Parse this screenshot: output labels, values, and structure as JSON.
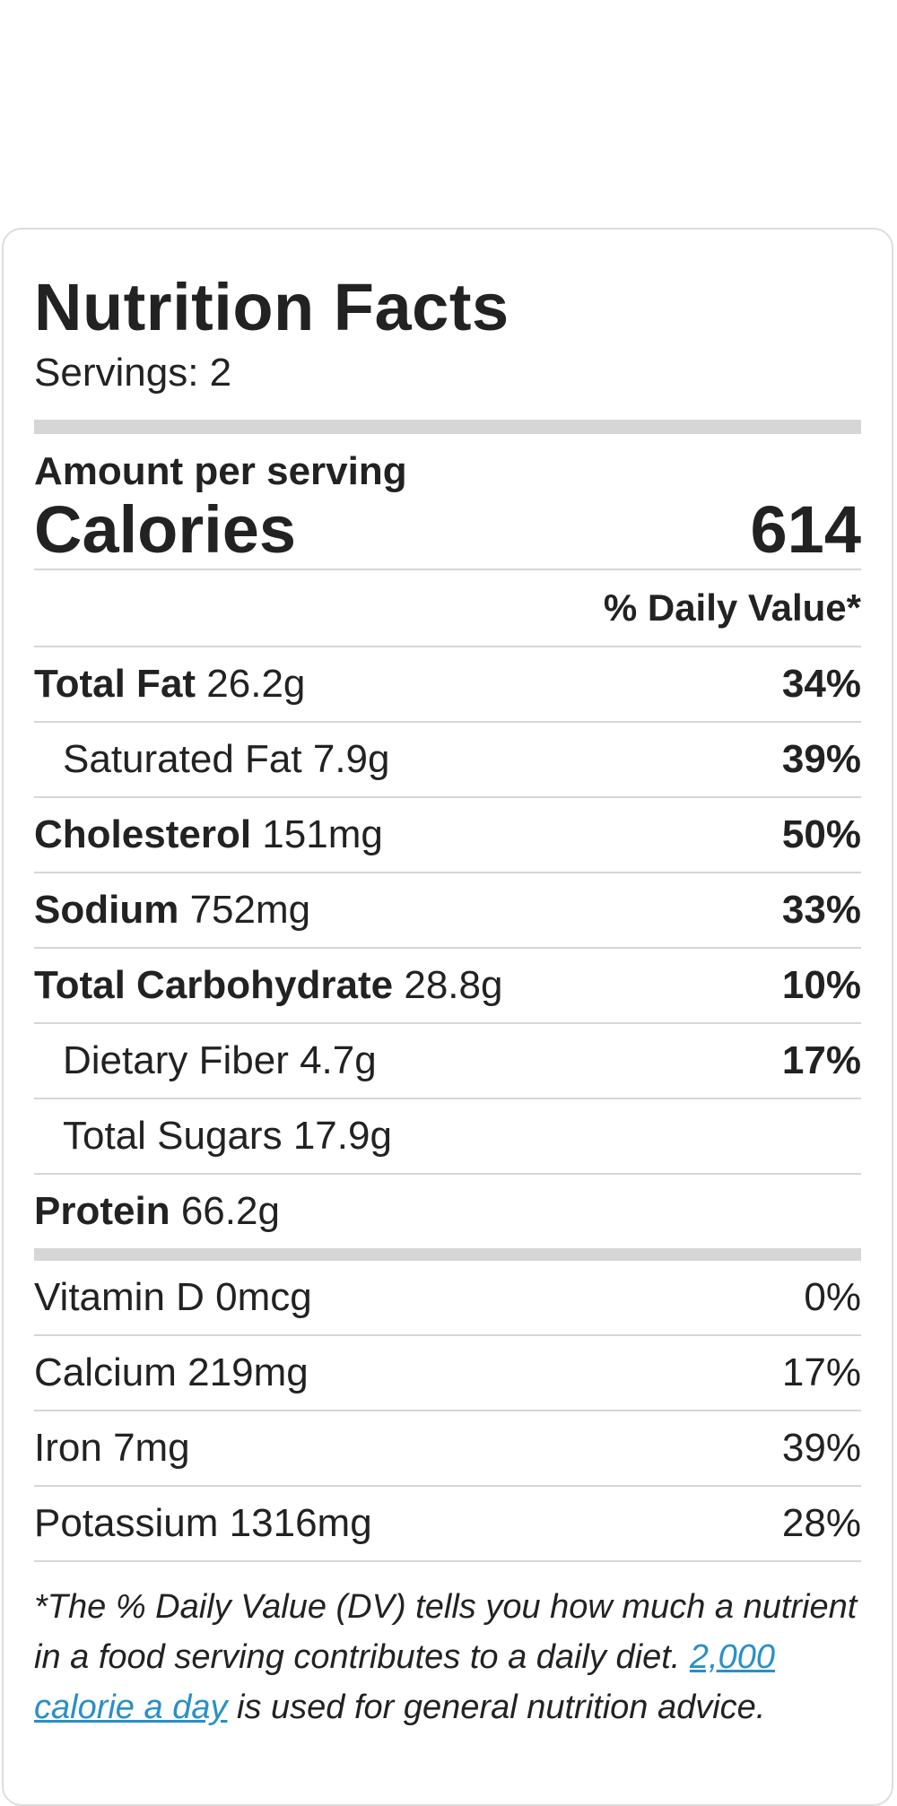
{
  "label": {
    "title": "Nutrition Facts",
    "servings": "Servings: 2",
    "amount_per_serving": "Amount per serving",
    "calories_label": "Calories",
    "calories_value": "614",
    "dv_header": "% Daily Value*",
    "nutrients": [
      {
        "name": "Total Fat",
        "amount": "26.2g",
        "dv": "34%"
      },
      {
        "name": "Saturated Fat",
        "amount": "7.9g",
        "dv": "39%"
      },
      {
        "name": "Cholesterol",
        "amount": "151mg",
        "dv": "50%"
      },
      {
        "name": "Sodium",
        "amount": "752mg",
        "dv": "33%"
      },
      {
        "name": "Total Carbohydrate",
        "amount": "28.8g",
        "dv": "10%"
      },
      {
        "name": "Dietary Fiber",
        "amount": "4.7g",
        "dv": "17%"
      },
      {
        "name": "Total Sugars",
        "amount": "17.9g",
        "dv": ""
      },
      {
        "name": "Protein",
        "amount": "66.2g",
        "dv": ""
      }
    ],
    "vitamins": [
      {
        "name": "Vitamin D",
        "amount": "0mcg",
        "dv": "0%"
      },
      {
        "name": "Calcium",
        "amount": "219mg",
        "dv": "17%"
      },
      {
        "name": "Iron",
        "amount": "7mg",
        "dv": "39%"
      },
      {
        "name": "Potassium",
        "amount": "1316mg",
        "dv": "28%"
      }
    ],
    "footnote_text": "*The % Daily Value (DV) tells you how much a nutrient in a food serving contributes to a daily diet.",
    "footnote_link": "2,000 calorie a day",
    "footnote_tail": "is used for general nutrition advice."
  }
}
